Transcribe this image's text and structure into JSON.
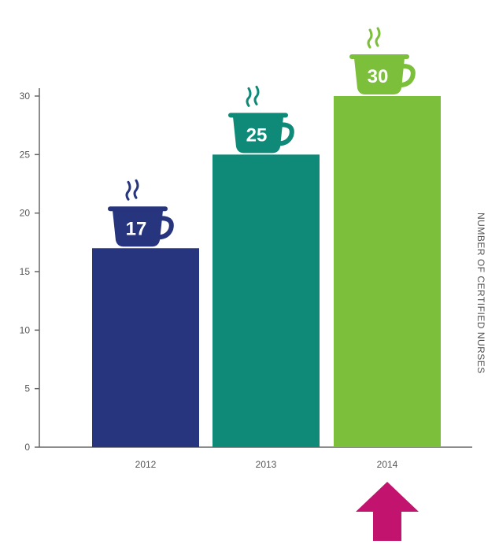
{
  "chart_data": {
    "type": "bar",
    "categories": [
      "2012",
      "2013",
      "2014"
    ],
    "values": [
      17,
      25,
      30
    ],
    "data_labels": [
      "17",
      "25",
      "30"
    ],
    "ylabel": "NUMBER OF CERTIFIED NURSES",
    "ylim": [
      0,
      30
    ],
    "yticks": [
      0,
      5,
      10,
      15,
      20,
      25,
      30
    ],
    "grid": false,
    "colors": [
      "#27357e",
      "#0f8a78",
      "#7cbf3b"
    ],
    "axis_color": "#666666",
    "decorations": {
      "cup_icon": "coffee-cup-icon",
      "steam_icon": "steam-icon",
      "highlight_icon": "up-arrow-icon",
      "highlight_category": "2014",
      "highlight_color": "#c2136e"
    }
  }
}
